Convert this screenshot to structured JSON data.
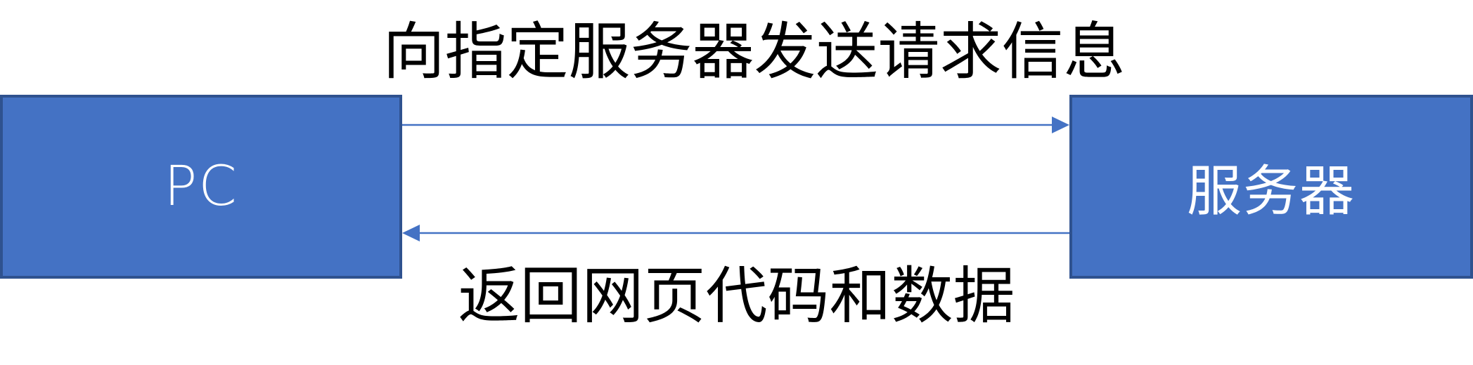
{
  "nodes": {
    "pc": {
      "label": "PC"
    },
    "server": {
      "label": "服务器"
    }
  },
  "edges": {
    "request": {
      "label": "向指定服务器发送请求信息",
      "from": "PC",
      "to": "服务器"
    },
    "response": {
      "label": "返回网页代码和数据",
      "from": "服务器",
      "to": "PC"
    }
  },
  "colors": {
    "box_fill": "#4472c4",
    "box_border": "#2f528f",
    "arrow": "#4472c4",
    "node_text": "#ffffff",
    "edge_text": "#000000"
  }
}
